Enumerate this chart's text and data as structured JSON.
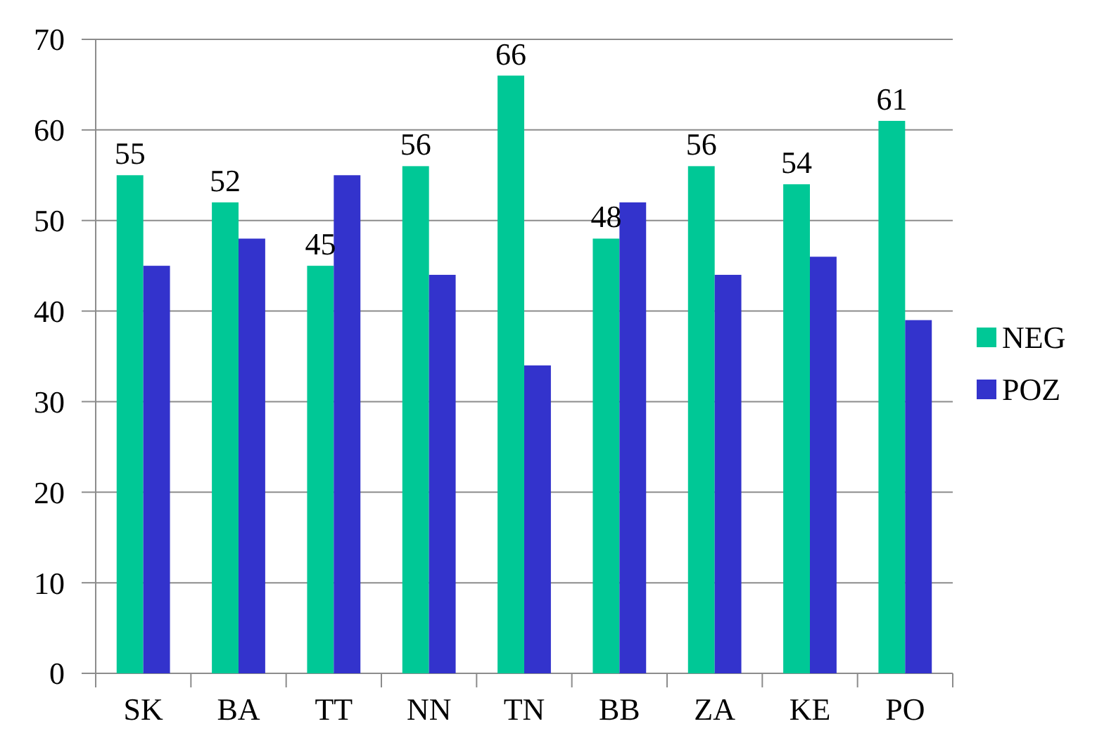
{
  "chart_data": {
    "type": "bar",
    "categories": [
      "SK",
      "BA",
      "TT",
      "NN",
      "TN",
      "BB",
      "ZA",
      "KE",
      "PO"
    ],
    "series": [
      {
        "name": "NEG",
        "color": "#00c896",
        "values": [
          55,
          52,
          45,
          56,
          66,
          48,
          56,
          54,
          61
        ],
        "value_labels": [
          "55",
          "52",
          "45",
          "56",
          "66",
          "48",
          "56",
          "54",
          "61"
        ]
      },
      {
        "name": "POZ",
        "color": "#3333cc",
        "values": [
          45,
          48,
          55,
          44,
          34,
          52,
          44,
          46,
          39
        ]
      }
    ],
    "ylim": [
      0,
      70
    ],
    "yticks": [
      0,
      10,
      20,
      30,
      40,
      50,
      60,
      70
    ],
    "grid": "y",
    "legend": "right"
  }
}
